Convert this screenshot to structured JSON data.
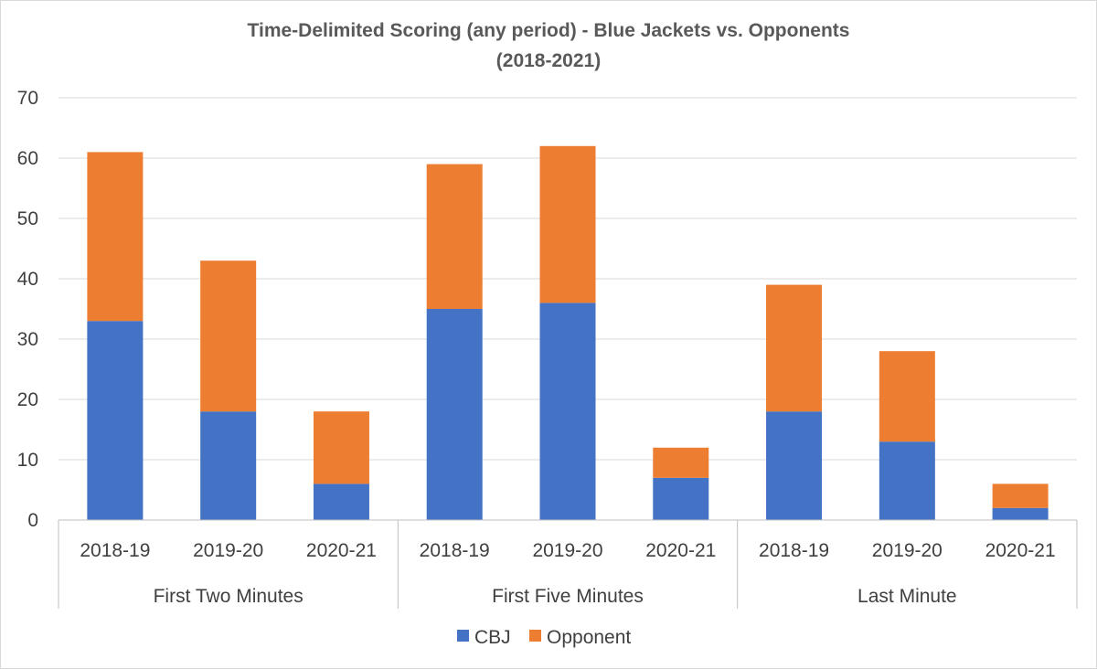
{
  "chart_data": {
    "type": "bar",
    "stacked": true,
    "title": "Time-Delimited Scoring (any period) - Blue Jackets vs. Opponents",
    "subtitle": "(2018-2021)",
    "xlabel": "",
    "ylabel": "",
    "ylim": [
      0,
      70
    ],
    "yticks": [
      0,
      10,
      20,
      30,
      40,
      50,
      60,
      70
    ],
    "grid": true,
    "legend_position": "bottom",
    "groups": [
      {
        "name": "First Two Minutes",
        "categories": [
          "2018-19",
          "2019-20",
          "2020-21"
        ]
      },
      {
        "name": "First Five Minutes",
        "categories": [
          "2018-19",
          "2019-20",
          "2020-21"
        ]
      },
      {
        "name": "Last Minute",
        "categories": [
          "2018-19",
          "2019-20",
          "2020-21"
        ]
      }
    ],
    "series": [
      {
        "name": "CBJ",
        "color": "#4472c4",
        "values": [
          33,
          18,
          6,
          35,
          36,
          7,
          18,
          13,
          2
        ]
      },
      {
        "name": "Opponent",
        "color": "#ed7d31",
        "values": [
          28,
          25,
          12,
          24,
          26,
          5,
          21,
          15,
          4
        ]
      }
    ]
  },
  "colors": {
    "gridline": "#d9d9d9",
    "axis": "#bfbfbf"
  }
}
